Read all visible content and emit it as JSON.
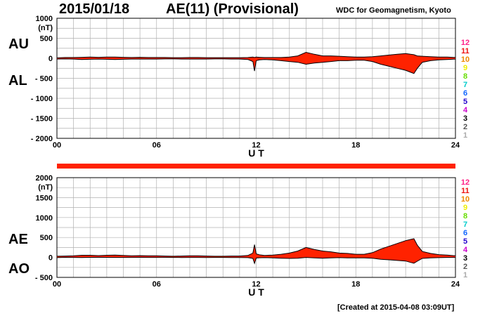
{
  "header": {
    "date": "2015/01/18",
    "title": "AE(11) (Provisional)",
    "source": "WDC for Geomagnetism, Kyoto"
  },
  "footer": {
    "created": "[Created at 2015-04-08 03:09UT]"
  },
  "colors": {
    "fill": "#ff2200",
    "separator": "#ff2200",
    "grid": "#b0b0b0",
    "scale": [
      "#ff2288",
      "#ee1111",
      "#ee8800",
      "#eeee00",
      "#66dd00",
      "#00cccc",
      "#1166ff",
      "#2200cc",
      "#cc00cc",
      "#000000",
      "#555555",
      "#aaaaaa"
    ]
  },
  "scale_labels": [
    "12",
    "11",
    "10",
    "9",
    "8",
    "7",
    "6",
    "5",
    "4",
    "3",
    "2",
    "1"
  ],
  "chart_data": [
    {
      "type": "area",
      "panel": "top",
      "ylabel_unit": "(nT)",
      "xlabel": "U T",
      "series_labels": [
        "AU",
        "AL"
      ],
      "xlim": [
        0,
        24
      ],
      "ylim": [
        -2000,
        1000
      ],
      "yticks": [
        1000,
        500,
        0,
        -500,
        -1000,
        -1500,
        -2000
      ],
      "ytick_labels": [
        "1000",
        "500",
        "0",
        "- 500",
        "- 1000",
        "- 1500",
        "- 2000"
      ],
      "xticks": [
        0,
        6,
        12,
        18,
        24
      ],
      "xtick_labels": [
        "00",
        "06",
        "12",
        "18",
        "24"
      ],
      "grid": true,
      "x": [
        0,
        0.5,
        1,
        1.5,
        2,
        2.5,
        3,
        3.5,
        4,
        4.5,
        5,
        5.5,
        6,
        6.5,
        7,
        7.5,
        8,
        8.5,
        9,
        9.5,
        10,
        10.5,
        11,
        11.5,
        11.8,
        11.9,
        12,
        12.2,
        12.5,
        13,
        13.5,
        14,
        14.5,
        15,
        15.5,
        16,
        16.5,
        17,
        17.5,
        18,
        18.5,
        19,
        19.5,
        20,
        20.5,
        21,
        21.3,
        21.5,
        21.7,
        22,
        22.5,
        23,
        23.5,
        24
      ],
      "series": [
        {
          "name": "AU",
          "values": [
            10,
            20,
            20,
            25,
            30,
            25,
            30,
            30,
            25,
            20,
            25,
            20,
            20,
            20,
            15,
            15,
            20,
            20,
            15,
            15,
            15,
            15,
            15,
            20,
            30,
            20,
            30,
            25,
            20,
            20,
            20,
            30,
            60,
            150,
            100,
            60,
            60,
            50,
            40,
            30,
            30,
            40,
            60,
            80,
            100,
            120,
            100,
            90,
            60,
            50,
            40,
            30,
            30,
            20
          ]
        },
        {
          "name": "AL",
          "values": [
            -20,
            -15,
            -20,
            -30,
            -25,
            -20,
            -25,
            -30,
            -25,
            -20,
            -20,
            -20,
            -20,
            -15,
            -15,
            -20,
            -20,
            -20,
            -20,
            -15,
            -15,
            -20,
            -20,
            -30,
            -80,
            -320,
            -60,
            -40,
            -30,
            -40,
            -60,
            -80,
            -100,
            -150,
            -120,
            -100,
            -80,
            -60,
            -60,
            -50,
            -50,
            -80,
            -150,
            -200,
            -250,
            -300,
            -350,
            -380,
            -250,
            -100,
            -60,
            -40,
            -30,
            -20
          ]
        }
      ]
    },
    {
      "type": "area",
      "panel": "bottom",
      "ylabel_unit": "(nT)",
      "xlabel": "U T",
      "series_labels": [
        "AE",
        "AO"
      ],
      "xlim": [
        0,
        24
      ],
      "ylim": [
        -500,
        2000
      ],
      "yticks": [
        2000,
        1500,
        1000,
        500,
        0,
        -500
      ],
      "ytick_labels": [
        "2000",
        "1500",
        "1000",
        "500",
        "0",
        "- 500"
      ],
      "xticks": [
        0,
        6,
        12,
        18,
        24
      ],
      "xtick_labels": [
        "00",
        "06",
        "12",
        "18",
        "24"
      ],
      "grid": true,
      "x": [
        0,
        0.5,
        1,
        1.5,
        2,
        2.5,
        3,
        3.5,
        4,
        4.5,
        5,
        5.5,
        6,
        6.5,
        7,
        7.5,
        8,
        8.5,
        9,
        9.5,
        10,
        10.5,
        11,
        11.5,
        11.8,
        11.9,
        12,
        12.2,
        12.5,
        13,
        13.5,
        14,
        14.5,
        15,
        15.5,
        16,
        16.5,
        17,
        17.5,
        18,
        18.5,
        19,
        19.5,
        20,
        20.5,
        21,
        21.3,
        21.5,
        21.7,
        22,
        22.5,
        23,
        23.5,
        24
      ],
      "series": [
        {
          "name": "AE",
          "values": [
            30,
            35,
            40,
            55,
            55,
            45,
            55,
            60,
            50,
            40,
            45,
            40,
            40,
            35,
            30,
            35,
            40,
            40,
            35,
            30,
            30,
            35,
            35,
            50,
            110,
            320,
            90,
            65,
            50,
            60,
            80,
            110,
            160,
            250,
            200,
            160,
            140,
            110,
            100,
            80,
            80,
            120,
            210,
            280,
            350,
            420,
            450,
            470,
            310,
            150,
            100,
            70,
            60,
            40
          ]
        },
        {
          "name": "AO",
          "values": [
            -5,
            2,
            0,
            -2,
            2,
            2,
            2,
            0,
            0,
            0,
            2,
            0,
            0,
            2,
            0,
            -2,
            0,
            0,
            -2,
            0,
            0,
            -2,
            -2,
            -5,
            -25,
            -150,
            -15,
            -8,
            -5,
            -10,
            -20,
            -25,
            -20,
            0,
            -10,
            -20,
            -10,
            -5,
            -10,
            -10,
            -10,
            -20,
            -45,
            -60,
            -75,
            -90,
            -125,
            -145,
            -95,
            -25,
            -10,
            -5,
            0,
            0
          ]
        }
      ]
    }
  ]
}
